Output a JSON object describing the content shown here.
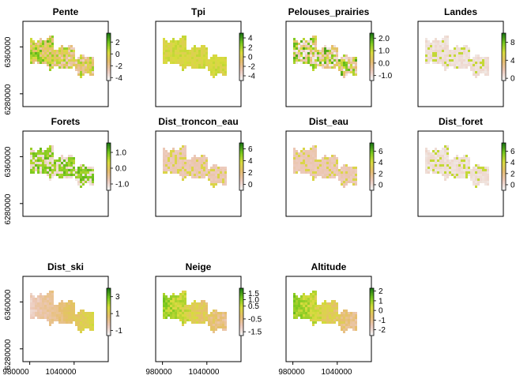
{
  "chart_data": {
    "type": "heatmap",
    "x_ticks": [
      "980000",
      "1040000"
    ],
    "y_ticks": [
      "6280000",
      "6360000"
    ],
    "panels": [
      {
        "title": "Pente",
        "legend_ticks": [
          "2",
          "0",
          "-2",
          "-4"
        ],
        "range": [
          -4.5,
          3.5
        ],
        "palette": "terrain",
        "pattern": "noisy"
      },
      {
        "title": "Tpi",
        "legend_ticks": [
          "4",
          "2",
          "0",
          "-2",
          "-4"
        ],
        "range": [
          -5,
          5
        ],
        "palette": "terrain",
        "pattern": "flat"
      },
      {
        "title": "Pelouses_prairies",
        "legend_ticks": [
          "2.0",
          "1.0",
          "0.0",
          "-1.0"
        ],
        "range": [
          -1.4,
          2.4
        ],
        "palette": "terrain",
        "pattern": "patchy"
      },
      {
        "title": "Landes",
        "legend_ticks": [
          "8",
          "4",
          "0"
        ],
        "range": [
          -0.5,
          10
        ],
        "palette": "terrain",
        "pattern": "sparse"
      },
      {
        "title": "Forets",
        "legend_ticks": [
          "1.0",
          "0.0",
          "-1.0"
        ],
        "range": [
          -1.4,
          1.6
        ],
        "palette": "terrain",
        "pattern": "forest"
      },
      {
        "title": "Dist_troncon_eau",
        "legend_ticks": [
          "6",
          "4",
          "2",
          "0"
        ],
        "range": [
          -1,
          7
        ],
        "palette": "terrain",
        "pattern": "low"
      },
      {
        "title": "Dist_eau",
        "legend_ticks": [
          "6",
          "4",
          "2",
          "0"
        ],
        "range": [
          -1,
          7.5
        ],
        "palette": "terrain",
        "pattern": "low"
      },
      {
        "title": "Dist_foret",
        "legend_ticks": [
          "6",
          "4",
          "2",
          "0"
        ],
        "range": [
          -1,
          7.5
        ],
        "palette": "terrain",
        "pattern": "sparse"
      },
      {
        "title": "Dist_ski",
        "legend_ticks": [
          "3",
          "1",
          "-1"
        ],
        "range": [
          -1.6,
          4
        ],
        "palette": "terrain",
        "pattern": "gradient_east"
      },
      {
        "title": "Neige",
        "legend_ticks": [
          "1.5",
          "1.0",
          "0.5",
          "-0.5",
          "-1.5"
        ],
        "range": [
          -1.8,
          1.9
        ],
        "palette": "terrain",
        "pattern": "gradient_west"
      },
      {
        "title": "Altitude",
        "legend_ticks": [
          "2",
          "1",
          "0",
          "-1",
          "-2"
        ],
        "range": [
          -2.6,
          2.3
        ],
        "palette": "terrain",
        "pattern": "gradient_west"
      }
    ]
  }
}
